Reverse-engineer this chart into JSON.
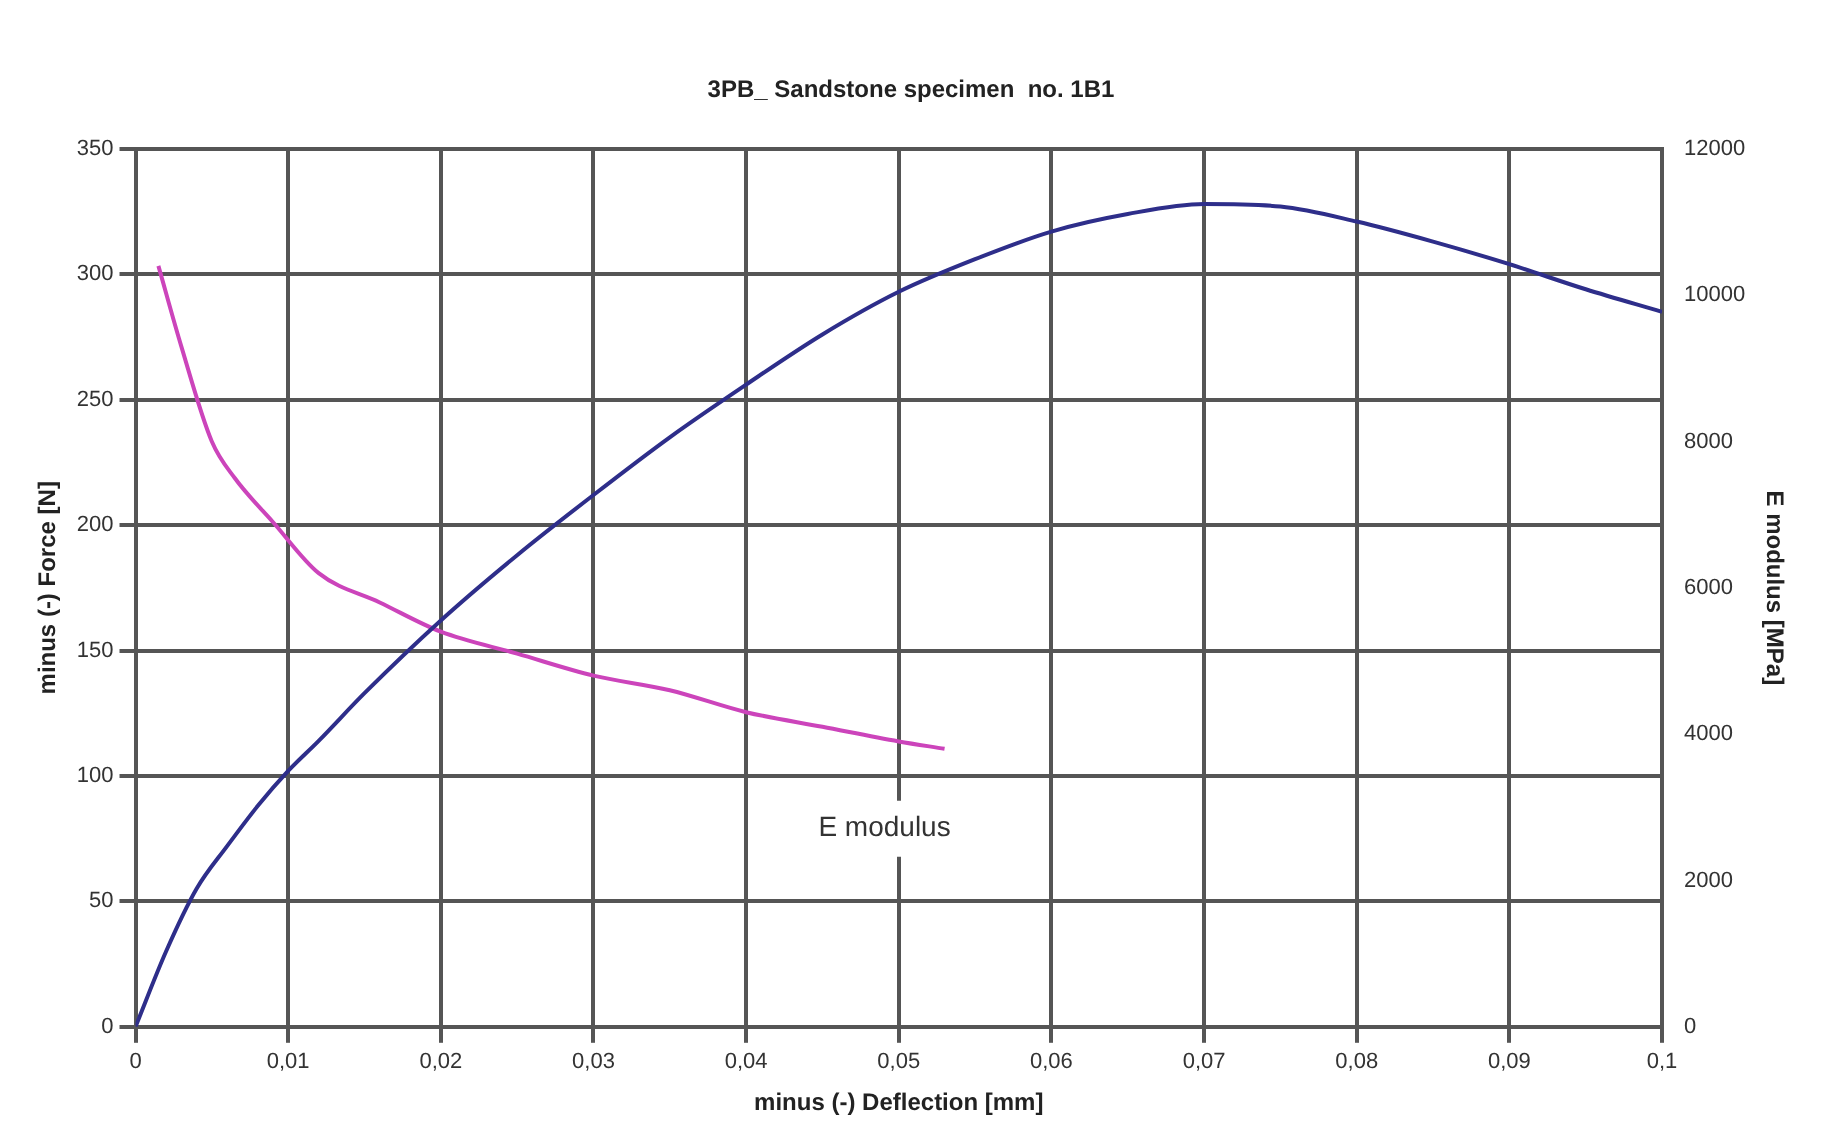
{
  "chart_data": {
    "type": "line",
    "title": "3PB_ Sandstone specimen  no. 1B1",
    "xlabel": "minus (-) Deflection [mm]",
    "ylabel": "minus (-) Force [N]",
    "y2label": "E modulus [MPa]",
    "xlim": [
      0,
      0.1
    ],
    "xticks": [
      0,
      {
        "value": 0.01,
        "label": "0,01"
      },
      {
        "value": 0.02,
        "label": "0,02"
      },
      {
        "value": 0.03,
        "label": "0,03"
      },
      {
        "value": 0.04,
        "label": "0,04"
      },
      {
        "value": 0.05,
        "label": "0,05"
      },
      {
        "value": 0.06,
        "label": "0,06"
      },
      {
        "value": 0.07,
        "label": "0,07"
      },
      {
        "value": 0.08,
        "label": "0,08"
      },
      {
        "value": 0.09,
        "label": "0,09"
      },
      {
        "value": 0.1,
        "label": "0,1"
      }
    ],
    "ylim": [
      0,
      350
    ],
    "yticks": [
      0,
      50,
      100,
      150,
      200,
      250,
      300,
      350
    ],
    "y2lim": [
      0,
      12000
    ],
    "y2ticks": [
      0,
      2000,
      4000,
      6000,
      8000,
      10000,
      12000
    ],
    "grid": true,
    "marker": "none",
    "line_style": "solid",
    "series": [
      {
        "color": "#2e2e8a",
        "x": [
          0,
          0.002,
          0.004,
          0.006,
          0.008,
          0.01,
          0.012,
          0.015,
          0.02,
          0.025,
          0.03,
          0.035,
          0.04,
          0.045,
          0.05,
          0.055,
          0.06,
          0.065,
          0.07,
          0.075,
          0.08,
          0.085,
          0.09,
          0.095,
          0.1
        ],
        "values": [
          0,
          30,
          55,
          72,
          88,
          102,
          114,
          133,
          162,
          188,
          212,
          235,
          256,
          276,
          293,
          306,
          317,
          324,
          328,
          327,
          321,
          313,
          304,
          294,
          285
        ]
      },
      {
        "name": "E modulus",
        "axis": "y2",
        "color": "#cc44bb",
        "x": [
          0.0015,
          0.003,
          0.005,
          0.0065,
          0.009,
          0.012,
          0.016,
          0.02,
          0.025,
          0.03,
          0.035,
          0.04,
          0.045,
          0.05,
          0.053
        ],
        "values": [
          10400,
          9300,
          8000,
          7500,
          6900,
          6200,
          5800,
          5400,
          5100,
          4800,
          4600,
          4300,
          4100,
          3900,
          3800
        ]
      }
    ]
  }
}
